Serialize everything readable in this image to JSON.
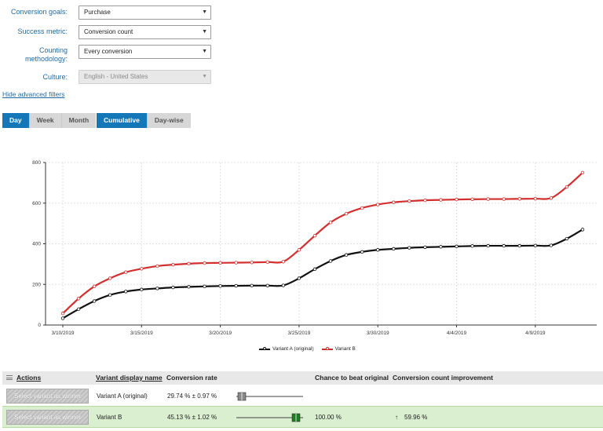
{
  "filters": [
    {
      "label": "Conversion goals:",
      "value": "Purchase",
      "disabled": false
    },
    {
      "label": "Success metric:",
      "value": "Conversion count",
      "disabled": false
    },
    {
      "label": "Counting methodology:",
      "value": "Every conversion",
      "disabled": false
    },
    {
      "label": "Culture:",
      "value": "English - United States",
      "disabled": true
    }
  ],
  "advanced_link": "Hide advanced filters",
  "period_buttons": [
    {
      "label": "Day",
      "active": true
    },
    {
      "label": "Week",
      "active": false
    },
    {
      "label": "Month",
      "active": false
    }
  ],
  "mode_buttons": [
    {
      "label": "Cumulative",
      "active": true
    },
    {
      "label": "Day-wise",
      "active": false
    }
  ],
  "chart_data": {
    "type": "line",
    "x_start": "3/10/2019",
    "x_tick_labels": [
      "3/10/2019",
      "3/15/2019",
      "3/20/2019",
      "3/25/2019",
      "3/30/2019",
      "4/4/2019",
      "4/9/2019"
    ],
    "ylim": [
      0,
      800
    ],
    "y_ticks": [
      0,
      200,
      400,
      600,
      800
    ],
    "grid": true,
    "legend_position": "bottom-center",
    "series": [
      {
        "name": "Variant A (original)",
        "color": "#111111",
        "values": [
          33,
          78,
          118,
          148,
          165,
          175,
          180,
          185,
          188,
          190,
          192,
          193,
          194,
          194,
          195,
          230,
          275,
          315,
          345,
          360,
          370,
          375,
          380,
          383,
          385,
          387,
          389,
          390,
          390,
          390,
          391,
          392,
          425,
          470
        ]
      },
      {
        "name": "Variant B",
        "color": "#d32f2f",
        "values": [
          57,
          130,
          190,
          230,
          260,
          277,
          290,
          297,
          302,
          305,
          306,
          307,
          308,
          310,
          312,
          370,
          440,
          505,
          548,
          576,
          593,
          604,
          610,
          614,
          616,
          618,
          619,
          620,
          620,
          621,
          622,
          625,
          680,
          750
        ]
      }
    ]
  },
  "table": {
    "headers": {
      "actions": "Actions",
      "variant_name": "Variant display name",
      "conversion_rate": "Conversion rate",
      "chance": "Chance to beat original",
      "improvement": "Conversion count improvement"
    },
    "rows": [
      {
        "button": "Select variant as winner",
        "name": "Variant A (original)",
        "rate": "29.74 % ± 0.97 %",
        "rate_value": 29.74,
        "chance": "",
        "improvement": "",
        "improvement_icon": "",
        "highlight": false,
        "bar_color": "#888888"
      },
      {
        "button": "Select variant as winner",
        "name": "Variant B",
        "rate": "45.13 % ± 1.02 %",
        "rate_value": 45.13,
        "chance": "100.00 %",
        "improvement": "59.96 %",
        "improvement_icon": "↑",
        "highlight": true,
        "bar_color": "#1e7d1e"
      }
    ]
  }
}
